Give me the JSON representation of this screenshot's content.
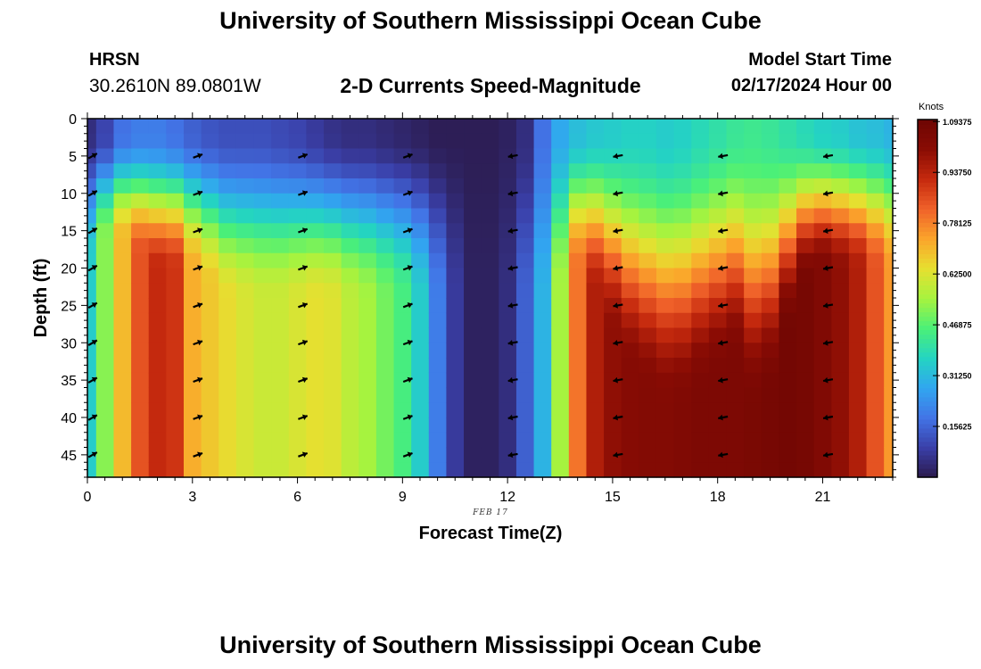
{
  "header": {
    "title": "University of Southern Mississippi Ocean Cube",
    "station": "HRSN",
    "coords": "30.2610N  89.0801W",
    "subtitle": "2-D Currents Speed-Magnitude",
    "model_start_label": "Model Start Time",
    "model_start_value": "02/17/2024 Hour 00"
  },
  "footer": {
    "title": "University of Southern Mississippi Ocean Cube"
  },
  "chart_data": {
    "type": "heatmap",
    "title": "2-D Currents Speed-Magnitude",
    "xlabel": "Forecast Time(Z)",
    "ylabel": "Depth (ft)",
    "date_label": "FEB 17",
    "x_ticks": [
      "0",
      "3",
      "6",
      "9",
      "12",
      "15",
      "18",
      "21"
    ],
    "y_ticks": [
      "0",
      "5",
      "10",
      "15",
      "20",
      "25",
      "30",
      "35",
      "40",
      "45"
    ],
    "xlim": [
      0,
      23
    ],
    "ylim": [
      0,
      48
    ],
    "y_inverted": true,
    "hours": [
      0,
      0.5,
      1,
      1.5,
      2,
      2.5,
      3,
      3.5,
      4,
      4.5,
      5,
      5.5,
      6,
      6.5,
      7,
      7.5,
      8,
      8.5,
      9,
      9.5,
      10,
      10.5,
      11,
      11.5,
      12,
      12.5,
      13,
      13.5,
      14,
      14.5,
      15,
      15.5,
      16,
      16.5,
      17,
      17.5,
      18,
      18.5,
      19,
      19.5,
      20,
      20.5,
      21,
      21.5,
      22,
      22.5,
      23
    ],
    "surface_speed": [
      0.05,
      0.1,
      0.18,
      0.2,
      0.2,
      0.18,
      0.15,
      0.13,
      0.12,
      0.12,
      0.12,
      0.11,
      0.1,
      0.08,
      0.06,
      0.05,
      0.05,
      0.04,
      0.03,
      0.02,
      0.01,
      0.01,
      0.01,
      0.01,
      0.02,
      0.05,
      0.18,
      0.28,
      0.32,
      0.34,
      0.35,
      0.36,
      0.36,
      0.35,
      0.36,
      0.38,
      0.4,
      0.42,
      0.43,
      0.42,
      0.4,
      0.38,
      0.36,
      0.35,
      0.33,
      0.32,
      0.3
    ],
    "deep_speed": [
      0.35,
      0.52,
      0.7,
      0.85,
      0.92,
      0.9,
      0.72,
      0.68,
      0.65,
      0.62,
      0.6,
      0.6,
      0.62,
      0.64,
      0.63,
      0.58,
      0.55,
      0.5,
      0.45,
      0.35,
      0.2,
      0.08,
      0.02,
      0.02,
      0.05,
      0.15,
      0.3,
      0.55,
      0.8,
      0.95,
      1.0,
      1.02,
      1.03,
      1.03,
      1.04,
      1.05,
      1.05,
      1.05,
      1.06,
      1.07,
      1.08,
      1.07,
      1.04,
      1.0,
      0.95,
      0.85,
      0.75
    ],
    "deep_onset_depth": [
      10,
      8,
      8,
      10,
      12,
      12,
      12,
      14,
      16,
      16,
      16,
      16,
      16,
      16,
      16,
      16,
      16,
      16,
      16,
      16,
      16,
      16,
      16,
      16,
      16,
      16,
      16,
      14,
      12,
      15,
      20,
      25,
      28,
      30,
      30,
      28,
      26,
      24,
      30,
      28,
      20,
      14,
      12,
      12,
      12,
      12,
      12
    ],
    "arrows": {
      "hours": [
        0,
        3,
        6,
        9,
        12,
        15,
        18,
        21
      ],
      "depths": [
        5,
        10,
        15,
        20,
        25,
        30,
        35,
        40,
        45
      ],
      "direction_deg": [
        30,
        20,
        20,
        20,
        190,
        190,
        190,
        190
      ]
    },
    "colorbar": {
      "units": "Knots",
      "ticks": [
        "1.09375",
        "0.93750",
        "0.78125",
        "0.62500",
        "0.46875",
        "0.31250",
        "0.15625"
      ],
      "range": [
        0,
        1.1
      ],
      "colors": [
        "#2b1a4c",
        "#3a3fa8",
        "#4274e6",
        "#31a6f0",
        "#24d4c2",
        "#4bf078",
        "#a6f33f",
        "#e6e030",
        "#fba52b",
        "#f0622a",
        "#c62a0e",
        "#8a0c04",
        "#6e0603"
      ]
    }
  }
}
